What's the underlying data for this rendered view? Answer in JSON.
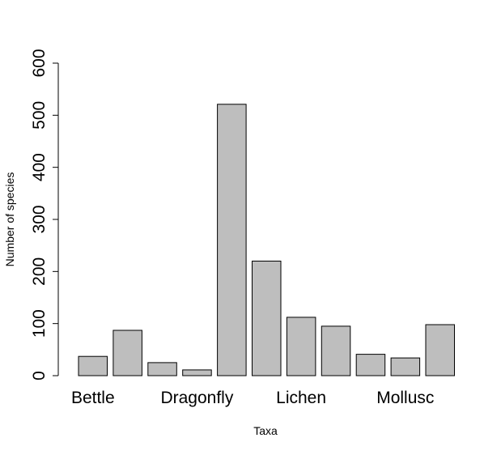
{
  "chart_data": {
    "type": "bar",
    "title": "",
    "xlabel": "Taxa",
    "ylabel": "Number of species",
    "ylim": [
      0,
      600
    ],
    "yticks": [
      0,
      100,
      200,
      300,
      400,
      500,
      600
    ],
    "categories": [
      "Bettle",
      "",
      "",
      "Dragonfly",
      "",
      "",
      "Lichen",
      "",
      "",
      "Mollusc",
      ""
    ],
    "values": [
      37,
      87,
      25,
      11,
      521,
      220,
      112,
      95,
      41,
      34,
      98
    ],
    "bar_fill": "#bebebe",
    "bar_stroke": "#000000",
    "grid": false,
    "legend": "none"
  }
}
